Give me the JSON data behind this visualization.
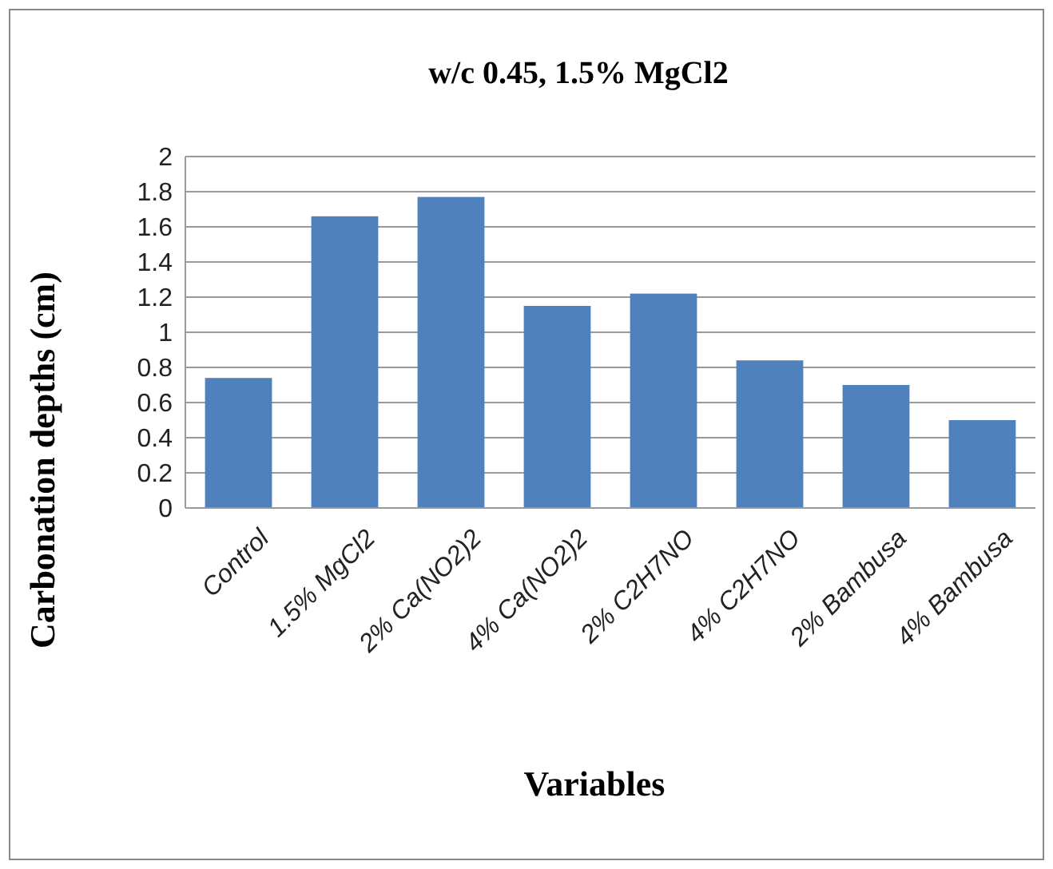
{
  "chart_data": {
    "type": "bar",
    "title": "w/c 0.45, 1.5% MgCl2",
    "xlabel": "Variables",
    "ylabel": "Carbonation depths (cm)",
    "categories": [
      "Control",
      "1.5% MgCl2",
      "2% Ca(NO2)2",
      "4% Ca(NO2)2",
      "2% C2H7NO",
      "4% C2H7NO",
      "2% Bambusa",
      "4% Bambusa"
    ],
    "values": [
      0.74,
      1.66,
      1.77,
      1.15,
      1.22,
      0.84,
      0.7,
      0.5
    ],
    "color": "#4f81bd",
    "ylim": [
      0,
      2
    ],
    "yticks": [
      0,
      0.2,
      0.4,
      0.6,
      0.8,
      1,
      1.2,
      1.4,
      1.6,
      1.8,
      2
    ],
    "grid": "y"
  }
}
